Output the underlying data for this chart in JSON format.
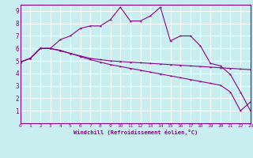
{
  "xlabel": "Windchill (Refroidissement éolien,°C)",
  "bg_color": "#c8eef0",
  "line_color": "#8b008b",
  "grid_color": "#ffffff",
  "xmin": 0,
  "xmax": 23,
  "ymin": 0,
  "ymax": 9.5,
  "yticks": [
    1,
    2,
    3,
    4,
    5,
    6,
    7,
    8,
    9
  ],
  "xticks": [
    0,
    1,
    2,
    3,
    4,
    5,
    6,
    7,
    8,
    9,
    10,
    11,
    12,
    13,
    14,
    15,
    16,
    17,
    18,
    19,
    20,
    21,
    22,
    23
  ],
  "line1_x": [
    0,
    1,
    2,
    3,
    4,
    5,
    6,
    7,
    8,
    9,
    10,
    11,
    12,
    13,
    14,
    15,
    16,
    17,
    18,
    19,
    20,
    21,
    22,
    23
  ],
  "line1_y": [
    4.9,
    5.2,
    6.0,
    6.0,
    5.8,
    5.6,
    5.4,
    5.2,
    5.1,
    5.0,
    4.95,
    4.9,
    4.85,
    4.8,
    4.75,
    4.7,
    4.65,
    4.6,
    4.55,
    4.5,
    4.45,
    4.4,
    4.35,
    4.3
  ],
  "line2_x": [
    0,
    1,
    2,
    3,
    4,
    5,
    6,
    7,
    8,
    9,
    10,
    11,
    12,
    13,
    14,
    15,
    16,
    17,
    18,
    19,
    20,
    21,
    22,
    23
  ],
  "line2_y": [
    4.9,
    5.2,
    6.0,
    6.0,
    5.85,
    5.6,
    5.35,
    5.1,
    4.9,
    4.7,
    4.55,
    4.4,
    4.25,
    4.1,
    3.95,
    3.8,
    3.65,
    3.5,
    3.35,
    3.2,
    3.05,
    2.5,
    1.0,
    1.7
  ],
  "line3_x": [
    0,
    1,
    2,
    3,
    4,
    5,
    6,
    7,
    8,
    9,
    10,
    11,
    12,
    13,
    14,
    15,
    16,
    17,
    18,
    19,
    20,
    21,
    22,
    23
  ],
  "line3_y": [
    4.9,
    5.2,
    6.0,
    6.0,
    6.7,
    7.0,
    7.6,
    7.8,
    7.8,
    8.3,
    9.3,
    8.2,
    8.2,
    8.6,
    9.3,
    6.6,
    7.0,
    7.0,
    6.2,
    4.8,
    4.6,
    3.9,
    2.5,
    1.0
  ]
}
